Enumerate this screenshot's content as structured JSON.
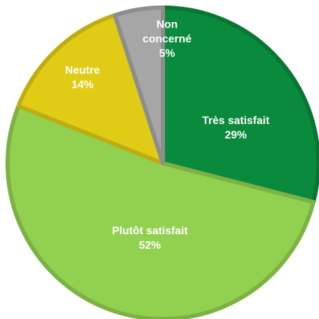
{
  "chart_data": {
    "type": "pie",
    "categories": [
      "Très satisfait",
      "Plutôt satisfait",
      "Neutre",
      "Non concerné"
    ],
    "values": [
      29,
      52,
      14,
      5
    ],
    "value_labels": [
      "29%",
      "52%",
      "14%",
      "5%"
    ],
    "colors": [
      "#0a8a3c",
      "#92d050",
      "#e0cc14",
      "#a6a6a6"
    ],
    "start_angle": 90,
    "direction": "clockwise"
  }
}
